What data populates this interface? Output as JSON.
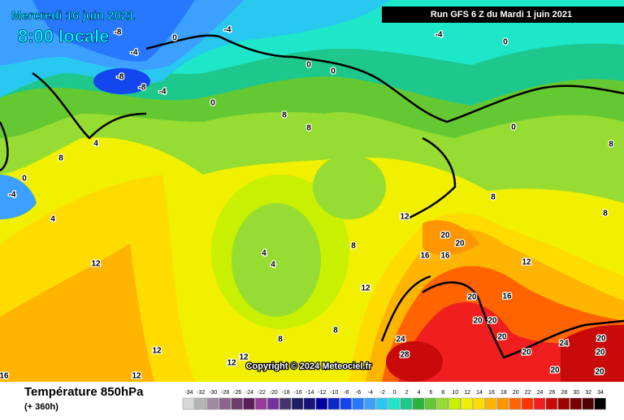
{
  "header": {
    "date": "Mercredi 16 juin 2021",
    "time": "8:00 locale",
    "run": "Run GFS 6 Z du Mardi 1 juin 2021"
  },
  "copyright": "Copyright © 2024 Meteociel.fr",
  "legend": {
    "title": "Température 850hPa",
    "lead": "(+ 360h)",
    "scale": [
      {
        "value": -34,
        "color": "#d8d8d8"
      },
      {
        "value": -32,
        "color": "#b4b4b4"
      },
      {
        "value": -30,
        "color": "#a08aa0"
      },
      {
        "value": -28,
        "color": "#8c648c"
      },
      {
        "value": -26,
        "color": "#6e3c6e"
      },
      {
        "value": -24,
        "color": "#5a1e5a"
      },
      {
        "value": -22,
        "color": "#963c96"
      },
      {
        "value": -20,
        "color": "#7830a0"
      },
      {
        "value": -18,
        "color": "#46326e"
      },
      {
        "value": -16,
        "color": "#1e1e64"
      },
      {
        "value": -14,
        "color": "#14147d"
      },
      {
        "value": -12,
        "color": "#0000a0"
      },
      {
        "value": -10,
        "color": "#0a28c8"
      },
      {
        "value": -8,
        "color": "#1446f0"
      },
      {
        "value": -6,
        "color": "#2878ff"
      },
      {
        "value": -4,
        "color": "#3ca0ff"
      },
      {
        "value": -2,
        "color": "#28c8f0"
      },
      {
        "value": 0,
        "color": "#1ee6c8"
      },
      {
        "value": 2,
        "color": "#1ec88c"
      },
      {
        "value": 4,
        "color": "#28b43c"
      },
      {
        "value": 6,
        "color": "#64c832"
      },
      {
        "value": 8,
        "color": "#96dc32"
      },
      {
        "value": 10,
        "color": "#c8f000"
      },
      {
        "value": 12,
        "color": "#f0f000"
      },
      {
        "value": 14,
        "color": "#ffdc00"
      },
      {
        "value": 16,
        "color": "#ffb400"
      },
      {
        "value": 18,
        "color": "#ff9600"
      },
      {
        "value": 20,
        "color": "#ff6400"
      },
      {
        "value": 22,
        "color": "#ff3200"
      },
      {
        "value": 24,
        "color": "#f01e1e"
      },
      {
        "value": 26,
        "color": "#c80a0a"
      },
      {
        "value": 28,
        "color": "#a00000"
      },
      {
        "value": 30,
        "color": "#780000"
      },
      {
        "value": 32,
        "color": "#500000"
      },
      {
        "value": 34,
        "color": "#000000"
      }
    ]
  },
  "contour_labels": [
    -8,
    -4,
    -8,
    -8,
    -4,
    0,
    -4,
    0,
    0,
    0,
    8,
    8,
    4,
    8,
    -4,
    0,
    4,
    12,
    4,
    4,
    8,
    12,
    12,
    12,
    12,
    16,
    8,
    12,
    12,
    8,
    8,
    8,
    20,
    20,
    16,
    16,
    12,
    16,
    20,
    20,
    20,
    24,
    28,
    20,
    20,
    24,
    20,
    20,
    20,
    20,
    8,
    -4,
    0,
    0
  ]
}
